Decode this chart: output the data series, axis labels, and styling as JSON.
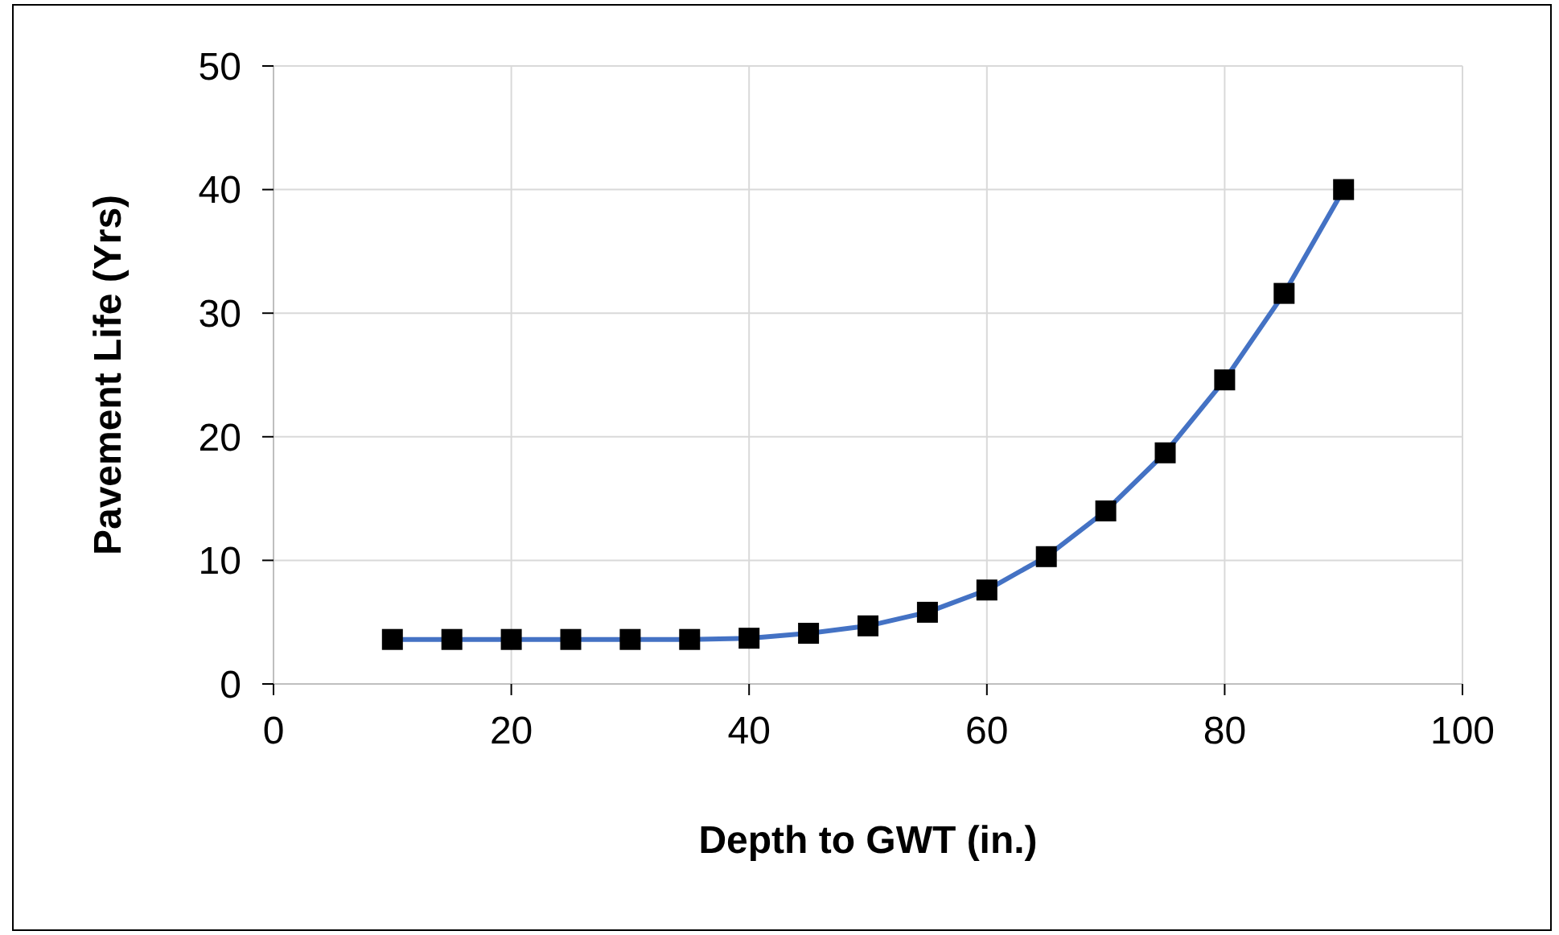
{
  "chart_data": {
    "type": "line",
    "xlabel": "Depth to GWT (in.)",
    "ylabel": "Pavement Life (Yrs)",
    "x": [
      10,
      15,
      20,
      25,
      30,
      35,
      40,
      45,
      50,
      55,
      60,
      65,
      70,
      75,
      80,
      85,
      90
    ],
    "series": [
      {
        "color": "#4472c4",
        "values": [
          3.6,
          3.6,
          3.6,
          3.6,
          3.6,
          3.6,
          3.7,
          4.1,
          4.7,
          5.8,
          7.6,
          10.3,
          14,
          18.7,
          24.6,
          31.6,
          40
        ]
      }
    ],
    "xlim": [
      0,
      100
    ],
    "xticks": [
      0,
      20,
      40,
      60,
      80,
      100
    ],
    "ylim": [
      0,
      50
    ],
    "yticks": [
      0,
      10,
      20,
      30,
      40,
      50
    ],
    "grid": true,
    "marker": "square",
    "line_style": "solid"
  }
}
